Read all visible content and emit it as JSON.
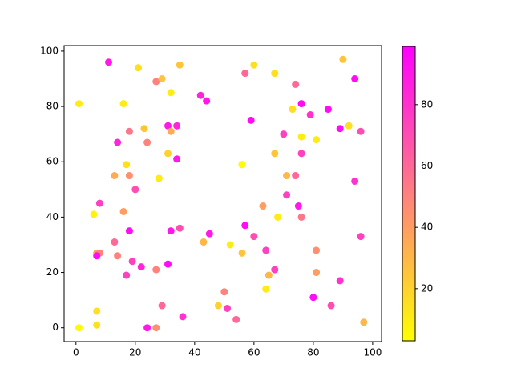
{
  "chart_data": {
    "type": "scatter",
    "x": [
      1,
      1,
      6,
      7,
      8,
      7,
      8,
      7,
      7,
      11,
      13,
      13,
      14,
      14,
      16,
      16,
      17,
      17,
      18,
      18,
      18,
      19,
      20,
      21,
      22,
      23,
      24,
      24,
      27,
      27,
      27,
      28,
      29,
      29,
      31,
      31,
      31,
      32,
      32,
      32,
      34,
      34,
      35,
      35,
      36,
      42,
      43,
      44,
      45,
      48,
      50,
      51,
      52,
      54,
      56,
      56,
      56,
      57,
      57,
      59,
      60,
      60,
      63,
      64,
      64,
      65,
      67,
      67,
      67,
      68,
      70,
      71,
      71,
      73,
      74,
      74,
      75,
      76,
      76,
      76,
      76,
      79,
      80,
      81,
      81,
      81,
      85,
      86,
      89,
      89,
      90,
      92,
      94,
      94,
      96,
      96,
      97
    ],
    "y": [
      81,
      0,
      41,
      27,
      27,
      26,
      45,
      6,
      1,
      96,
      55,
      31,
      26,
      67,
      81,
      42,
      59,
      19,
      71,
      55,
      35,
      24,
      50,
      94,
      22,
      72,
      67,
      0,
      89,
      21,
      0,
      54,
      90,
      8,
      63,
      73,
      23,
      71,
      85,
      35,
      73,
      61,
      95,
      36,
      4,
      84,
      31,
      82,
      34,
      8,
      13,
      7,
      30,
      3,
      59,
      59,
      27,
      92,
      37,
      75,
      95,
      33,
      44,
      14,
      28,
      19,
      92,
      63,
      21,
      40,
      70,
      55,
      48,
      79,
      88,
      55,
      44,
      81,
      69,
      63,
      40,
      77,
      11,
      68,
      28,
      20,
      79,
      8,
      72,
      17,
      97,
      73,
      90,
      53,
      71,
      33,
      2
    ],
    "c": [
      10,
      5,
      8,
      40,
      50,
      95,
      75,
      15,
      15,
      90,
      35,
      60,
      50,
      85,
      10,
      40,
      15,
      75,
      55,
      45,
      95,
      75,
      70,
      15,
      85,
      25,
      50,
      90,
      50,
      50,
      45,
      10,
      25,
      60,
      20,
      90,
      95,
      35,
      10,
      90,
      85,
      90,
      25,
      70,
      80,
      85,
      30,
      90,
      90,
      20,
      50,
      75,
      10,
      60,
      20,
      5,
      25,
      60,
      95,
      95,
      15,
      70,
      40,
      10,
      75,
      30,
      15,
      25,
      75,
      10,
      75,
      30,
      75,
      15,
      60,
      60,
      90,
      95,
      10,
      75,
      55,
      80,
      95,
      10,
      45,
      40,
      95,
      70,
      95,
      80,
      25,
      15,
      95,
      80,
      70,
      75,
      30
    ],
    "colormap": "spring_r",
    "clim": [
      3,
      99
    ],
    "cticks": [
      20,
      40,
      60,
      80
    ],
    "xlim": [
      -4,
      103
    ],
    "xticks": [
      0,
      20,
      40,
      60,
      80,
      100
    ],
    "ylim": [
      -5,
      102
    ],
    "yticks": [
      0,
      20,
      40,
      60,
      80,
      100
    ]
  }
}
